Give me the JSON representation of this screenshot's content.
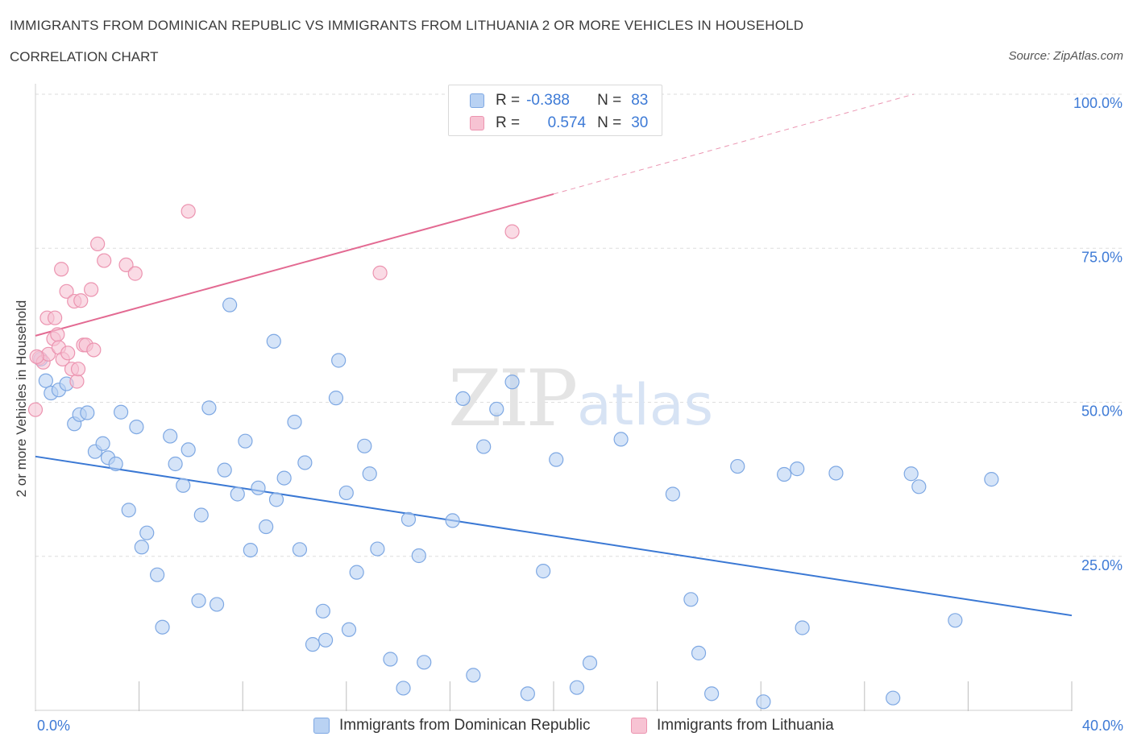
{
  "header": {
    "title": "IMMIGRANTS FROM DOMINICAN REPUBLIC VS IMMIGRANTS FROM LITHUANIA 2 OR MORE VEHICLES IN HOUSEHOLD",
    "subtitle": "CORRELATION CHART",
    "source": "Source: ZipAtlas.com"
  },
  "legend": {
    "rows": [
      {
        "r_key": "R =",
        "r_value": "-0.388",
        "n_key": "N =",
        "n_value": "83"
      },
      {
        "r_key": "R =",
        "r_value": "0.574",
        "n_key": "N =",
        "n_value": "30"
      }
    ]
  },
  "colors": {
    "blue_fill": "#b9d2f3",
    "blue_stroke": "#7ea8e3",
    "blue_line": "#3a78d4",
    "pink_fill": "#f7c3d3",
    "pink_stroke": "#ec94b0",
    "pink_line": "#e36a92",
    "axis_label": "#3d7ad6"
  },
  "chart_data": {
    "type": "scatter",
    "title": "IMMIGRANTS FROM DOMINICAN REPUBLIC VS IMMIGRANTS FROM LITHUANIA 2 OR MORE VEHICLES IN HOUSEHOLD",
    "subtitle": "CORRELATION CHART",
    "xlabel": "",
    "ylabel": "2 or more Vehicles in Household",
    "xlim": [
      0,
      40
    ],
    "ylim": [
      0,
      100
    ],
    "x_tick_labels": [
      "0.0%",
      "40.0%"
    ],
    "y_tick_labels": [
      "100.0%",
      "75.0%",
      "50.0%",
      "25.0%"
    ],
    "y_ticks": [
      100,
      75,
      50,
      25
    ],
    "grid": true,
    "legend_position": "bottom",
    "watermark": "ZIPatlas",
    "series": [
      {
        "name": "Immigrants from Dominican Republic",
        "color": "#b9d2f3",
        "R": -0.388,
        "N": 83,
        "trend": {
          "x": [
            0,
            40
          ],
          "y": [
            41.2,
            15.4
          ]
        },
        "points": [
          {
            "x": 0.2,
            "y": 57.0
          },
          {
            "x": 0.4,
            "y": 53.5
          },
          {
            "x": 0.6,
            "y": 51.5
          },
          {
            "x": 0.9,
            "y": 52.0
          },
          {
            "x": 1.2,
            "y": 53.0
          },
          {
            "x": 1.5,
            "y": 46.5
          },
          {
            "x": 1.7,
            "y": 48.0
          },
          {
            "x": 2.0,
            "y": 48.3
          },
          {
            "x": 2.3,
            "y": 42.0
          },
          {
            "x": 2.6,
            "y": 43.3
          },
          {
            "x": 2.8,
            "y": 41.0
          },
          {
            "x": 3.1,
            "y": 40.0
          },
          {
            "x": 3.3,
            "y": 48.4
          },
          {
            "x": 3.6,
            "y": 32.5
          },
          {
            "x": 3.9,
            "y": 46.0
          },
          {
            "x": 4.1,
            "y": 26.5
          },
          {
            "x": 4.3,
            "y": 28.8
          },
          {
            "x": 4.7,
            "y": 22.0
          },
          {
            "x": 4.9,
            "y": 13.5
          },
          {
            "x": 5.2,
            "y": 44.5
          },
          {
            "x": 5.4,
            "y": 40.0
          },
          {
            "x": 5.7,
            "y": 36.5
          },
          {
            "x": 5.9,
            "y": 42.3
          },
          {
            "x": 6.3,
            "y": 17.8
          },
          {
            "x": 6.4,
            "y": 31.7
          },
          {
            "x": 6.7,
            "y": 49.1
          },
          {
            "x": 7.0,
            "y": 17.2
          },
          {
            "x": 7.3,
            "y": 39.0
          },
          {
            "x": 7.5,
            "y": 65.8
          },
          {
            "x": 7.8,
            "y": 35.1
          },
          {
            "x": 8.1,
            "y": 43.7
          },
          {
            "x": 8.3,
            "y": 26.0
          },
          {
            "x": 8.6,
            "y": 36.1
          },
          {
            "x": 8.9,
            "y": 29.8
          },
          {
            "x": 9.2,
            "y": 59.9
          },
          {
            "x": 9.3,
            "y": 34.2
          },
          {
            "x": 9.6,
            "y": 37.7
          },
          {
            "x": 10.0,
            "y": 46.8
          },
          {
            "x": 10.2,
            "y": 26.1
          },
          {
            "x": 10.4,
            "y": 40.2
          },
          {
            "x": 10.7,
            "y": 10.7
          },
          {
            "x": 11.1,
            "y": 16.1
          },
          {
            "x": 11.2,
            "y": 11.4
          },
          {
            "x": 11.6,
            "y": 50.7
          },
          {
            "x": 11.7,
            "y": 56.8
          },
          {
            "x": 12.0,
            "y": 35.3
          },
          {
            "x": 12.1,
            "y": 13.1
          },
          {
            "x": 12.4,
            "y": 22.4
          },
          {
            "x": 12.7,
            "y": 42.9
          },
          {
            "x": 12.9,
            "y": 38.4
          },
          {
            "x": 13.2,
            "y": 26.2
          },
          {
            "x": 13.7,
            "y": 8.3
          },
          {
            "x": 14.2,
            "y": 3.6
          },
          {
            "x": 14.4,
            "y": 31.0
          },
          {
            "x": 14.8,
            "y": 25.1
          },
          {
            "x": 15.0,
            "y": 7.8
          },
          {
            "x": 16.1,
            "y": 30.8
          },
          {
            "x": 16.5,
            "y": 50.6
          },
          {
            "x": 16.9,
            "y": 5.7
          },
          {
            "x": 17.3,
            "y": 42.8
          },
          {
            "x": 17.8,
            "y": 48.9
          },
          {
            "x": 18.4,
            "y": 53.3
          },
          {
            "x": 19.0,
            "y": 2.7
          },
          {
            "x": 19.6,
            "y": 22.6
          },
          {
            "x": 20.1,
            "y": 40.7
          },
          {
            "x": 20.9,
            "y": 3.7
          },
          {
            "x": 21.4,
            "y": 7.7
          },
          {
            "x": 22.6,
            "y": 44.0
          },
          {
            "x": 24.6,
            "y": 35.1
          },
          {
            "x": 25.3,
            "y": 18.0
          },
          {
            "x": 25.6,
            "y": 9.3
          },
          {
            "x": 26.1,
            "y": 2.7
          },
          {
            "x": 27.1,
            "y": 39.6
          },
          {
            "x": 28.1,
            "y": 1.4
          },
          {
            "x": 28.9,
            "y": 38.3
          },
          {
            "x": 29.4,
            "y": 39.2
          },
          {
            "x": 29.6,
            "y": 13.4
          },
          {
            "x": 30.9,
            "y": 38.5
          },
          {
            "x": 33.1,
            "y": 2.0
          },
          {
            "x": 33.8,
            "y": 38.4
          },
          {
            "x": 34.1,
            "y": 36.3
          },
          {
            "x": 35.5,
            "y": 14.6
          },
          {
            "x": 36.9,
            "y": 37.5
          }
        ]
      },
      {
        "name": "Immigrants from Lithuania",
        "color": "#f7c3d3",
        "R": 0.574,
        "N": 30,
        "trend": {
          "x": [
            0,
            20
          ],
          "y": [
            60.8,
            83.8
          ]
        },
        "trend_dashed": {
          "x": [
            20,
            33.9
          ],
          "y": [
            83.8,
            100
          ]
        },
        "points": [
          {
            "x": 0.0,
            "y": 48.8
          },
          {
            "x": 0.15,
            "y": 57.2
          },
          {
            "x": 0.3,
            "y": 56.5
          },
          {
            "x": 0.45,
            "y": 63.7
          },
          {
            "x": 0.5,
            "y": 57.8
          },
          {
            "x": 0.7,
            "y": 60.3
          },
          {
            "x": 0.75,
            "y": 63.7
          },
          {
            "x": 0.85,
            "y": 61.0
          },
          {
            "x": 0.9,
            "y": 58.9
          },
          {
            "x": 1.0,
            "y": 71.6
          },
          {
            "x": 1.05,
            "y": 57.0
          },
          {
            "x": 1.2,
            "y": 68.0
          },
          {
            "x": 1.25,
            "y": 58.0
          },
          {
            "x": 1.4,
            "y": 55.4
          },
          {
            "x": 1.5,
            "y": 66.4
          },
          {
            "x": 1.6,
            "y": 53.4
          },
          {
            "x": 1.65,
            "y": 55.4
          },
          {
            "x": 1.75,
            "y": 66.5
          },
          {
            "x": 1.85,
            "y": 59.3
          },
          {
            "x": 1.95,
            "y": 59.3
          },
          {
            "x": 2.15,
            "y": 68.3
          },
          {
            "x": 2.25,
            "y": 58.5
          },
          {
            "x": 2.4,
            "y": 75.7
          },
          {
            "x": 2.65,
            "y": 73.0
          },
          {
            "x": 3.5,
            "y": 72.3
          },
          {
            "x": 3.85,
            "y": 70.9
          },
          {
            "x": 5.9,
            "y": 81.0
          },
          {
            "x": 13.3,
            "y": 71.0
          },
          {
            "x": 18.4,
            "y": 77.7
          },
          {
            "x": 0.05,
            "y": 57.4
          }
        ]
      }
    ]
  },
  "bottom_legend": [
    {
      "label": "Immigrants from Dominican Republic"
    },
    {
      "label": "Immigrants from Lithuania"
    }
  ]
}
